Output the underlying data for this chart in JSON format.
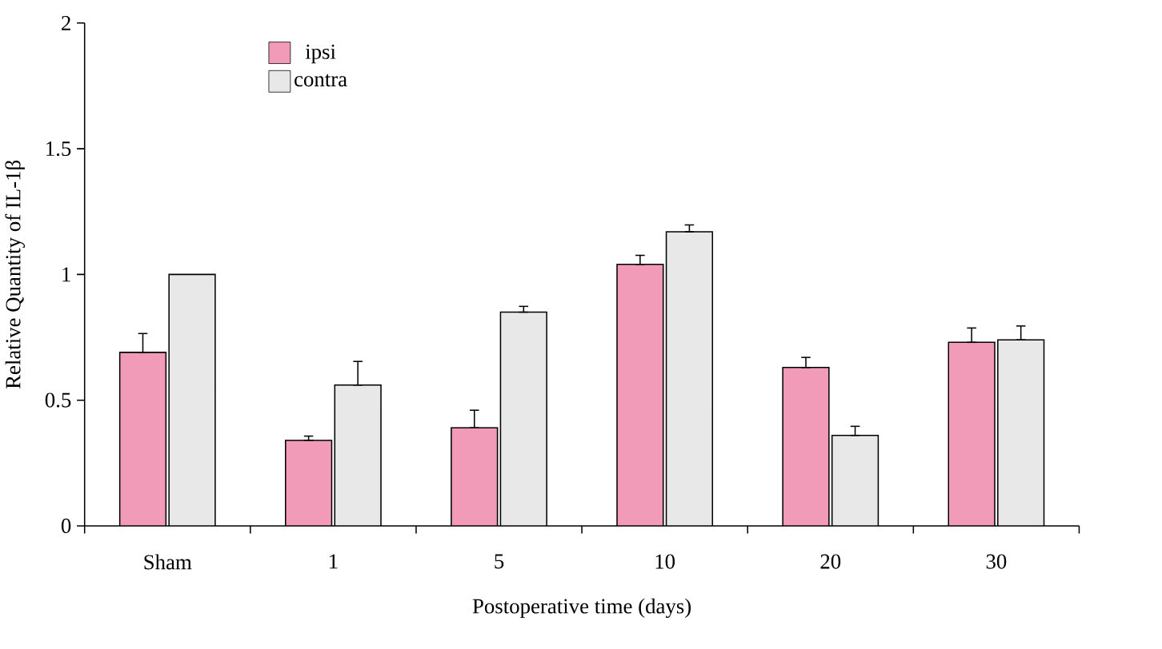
{
  "chart_data": {
    "type": "bar",
    "xlabel": "Postoperative time (days)",
    "ylabel": "Relative Quantity of IL-1β",
    "categories": [
      "Sham",
      "1",
      "5",
      "10",
      "20",
      "30"
    ],
    "series": [
      {
        "name": "ipsi",
        "color": "#f29bb9",
        "values": [
          0.69,
          0.34,
          0.39,
          1.04,
          0.63,
          0.73
        ],
        "errors": [
          [
            0.69,
            0.765
          ],
          [
            0.34,
            0.357
          ],
          [
            0.39,
            0.46
          ],
          [
            1.04,
            1.076
          ],
          [
            0.63,
            0.67
          ],
          [
            0.73,
            0.787
          ]
        ]
      },
      {
        "name": "contra",
        "color": "#e8e8e8",
        "values": [
          1.0,
          0.56,
          0.85,
          1.17,
          0.36,
          0.74
        ],
        "errors": [
          null,
          [
            0.56,
            0.654
          ],
          [
            0.85,
            0.873
          ],
          [
            1.17,
            1.197
          ],
          [
            0.36,
            0.396
          ],
          [
            0.74,
            0.795
          ]
        ]
      }
    ],
    "ylim": [
      0,
      2
    ],
    "yticks": [
      0,
      0.5,
      1,
      1.5,
      2
    ],
    "grid": false,
    "legend": "top left"
  }
}
